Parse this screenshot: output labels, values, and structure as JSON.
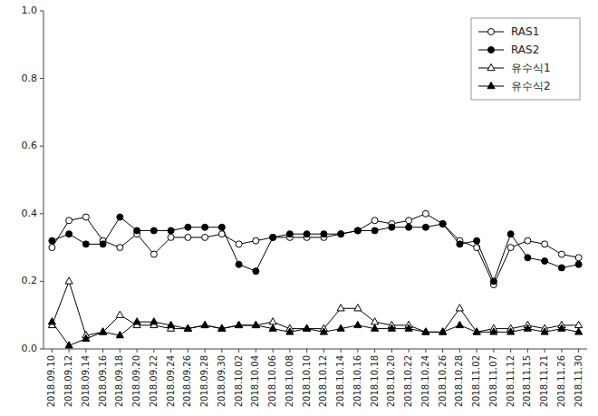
{
  "chart_data": {
    "type": "line",
    "categories": [
      "2018.09.10",
      "2018.09.12",
      "2018.09.14",
      "2018.09.16",
      "2018.09.18",
      "2018.09.20",
      "2018.09.22",
      "2018.09.24",
      "2018.09.26",
      "2018.09.28",
      "2018.09.30",
      "2018.10.02",
      "2018.10.04",
      "2018.10.06",
      "2018.10.08",
      "2018.10.10",
      "2018.10.12",
      "2018.10.14",
      "2018.10.16",
      "2018.10.18",
      "2018.10.20",
      "2018.10.22",
      "2018.10.24",
      "2018.10.26",
      "2018.10.28",
      "2018.11.02",
      "2018.11.07",
      "2018.11.12",
      "2018.11.15",
      "2018.11.21",
      "2018.11.26",
      "2018.11.30"
    ],
    "series": [
      {
        "name": "RAS1",
        "color": "#000000",
        "marker": "open-circle",
        "values": [
          0.3,
          0.38,
          0.39,
          0.32,
          0.3,
          0.34,
          0.28,
          0.33,
          0.33,
          0.33,
          0.34,
          0.31,
          0.32,
          0.33,
          0.33,
          0.33,
          0.33,
          0.34,
          0.35,
          0.38,
          0.37,
          0.38,
          0.4,
          0.37,
          0.32,
          0.3,
          0.19,
          0.3,
          0.32,
          0.31,
          0.28,
          0.27
        ]
      },
      {
        "name": "RAS2",
        "color": "#000000",
        "marker": "circle",
        "values": [
          0.32,
          0.34,
          0.31,
          0.31,
          0.39,
          0.35,
          0.35,
          0.35,
          0.36,
          0.36,
          0.36,
          0.25,
          0.23,
          0.33,
          0.34,
          0.34,
          0.34,
          0.34,
          0.35,
          0.35,
          0.36,
          0.36,
          0.36,
          0.37,
          0.31,
          0.32,
          0.2,
          0.34,
          0.27,
          0.26,
          0.24,
          0.25
        ]
      },
      {
        "name": "유수식1",
        "color": "#000000",
        "marker": "open-triangle",
        "values": [
          0.07,
          0.2,
          0.04,
          0.05,
          0.1,
          0.07,
          0.07,
          0.06,
          0.06,
          0.07,
          0.06,
          0.07,
          0.07,
          0.08,
          0.06,
          0.06,
          0.06,
          0.12,
          0.12,
          0.08,
          0.07,
          0.07,
          0.05,
          0.05,
          0.12,
          0.05,
          0.06,
          0.06,
          0.07,
          0.06,
          0.07,
          0.07
        ]
      },
      {
        "name": "유수식2",
        "color": "#000000",
        "marker": "triangle",
        "values": [
          0.08,
          0.01,
          0.03,
          0.05,
          0.04,
          0.08,
          0.08,
          0.07,
          0.06,
          0.07,
          0.06,
          0.07,
          0.07,
          0.06,
          0.05,
          0.06,
          0.05,
          0.06,
          0.07,
          0.06,
          0.06,
          0.06,
          0.05,
          0.05,
          0.07,
          0.05,
          0.05,
          0.05,
          0.06,
          0.05,
          0.06,
          0.05
        ]
      }
    ],
    "ylim": [
      0.0,
      1.0
    ],
    "yticks": [
      {
        "value": 0.0,
        "label": "0.0"
      },
      0.2,
      0.4,
      0.6,
      0.8,
      {
        "value": 1.0,
        "label": "1.0"
      }
    ],
    "grid": false,
    "legend": "upper right"
  }
}
